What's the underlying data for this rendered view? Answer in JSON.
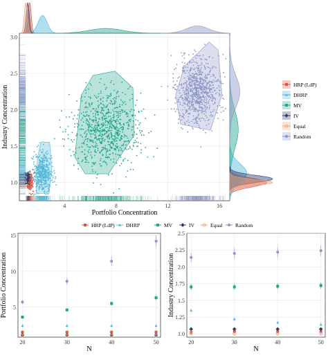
{
  "colors": {
    "HRP (LdP)": "#e0553f",
    "DHRP": "#4fb7d9",
    "MV": "#22a48b",
    "IV": "#2d3f6b",
    "Equal": "#f0a07a",
    "Random": "#8d97c7"
  },
  "chart_data": [
    {
      "type": "scatter",
      "title": "",
      "xlabel": "Portfolio Concentration",
      "ylabel": "Industry Concentration",
      "xlim": [
        0.5,
        16.8
      ],
      "ylim": [
        0.75,
        3.05
      ],
      "x_ticks": [
        "4",
        "8",
        "12",
        "16"
      ],
      "y_ticks": [
        "1.0",
        "1.5",
        "2.0",
        "2.5",
        "3.0"
      ],
      "grid": true,
      "legend_position": "right",
      "legend": [
        "HRP (LdP)",
        "DHRP",
        "MV",
        "IV",
        "Equal",
        "Random"
      ],
      "marginal_plots": [
        "x-density (top)",
        "y-density (right)",
        "rug (x and y)"
      ],
      "series": [
        {
          "name": "HRP (LdP)",
          "center": [
            1.3,
            1.0
          ],
          "spread": [
            0.12,
            0.06
          ],
          "hull": [
            [
              1.1,
              0.92
            ],
            [
              1.5,
              0.93
            ],
            [
              1.55,
              1.05
            ],
            [
              1.4,
              1.12
            ],
            [
              1.15,
              1.1
            ]
          ]
        },
        {
          "name": "DHRP",
          "center": [
            2.3,
            1.13
          ],
          "spread": [
            0.35,
            0.13
          ],
          "hull": [
            [
              1.8,
              0.85
            ],
            [
              2.8,
              0.85
            ],
            [
              3.0,
              1.2
            ],
            [
              2.85,
              1.55
            ],
            [
              2.2,
              1.56
            ],
            [
              1.9,
              1.35
            ]
          ]
        },
        {
          "name": "MV",
          "center": [
            7.2,
            1.73
          ],
          "spread": [
            1.3,
            0.26
          ],
          "hull": [
            [
              5.6,
              1.12
            ],
            [
              7.4,
              1.12
            ],
            [
              9.4,
              1.65
            ],
            [
              9.3,
              2.3
            ],
            [
              7.9,
              2.53
            ],
            [
              6.2,
              2.47
            ],
            [
              5.3,
              2.2
            ],
            [
              4.8,
              1.35
            ]
          ]
        },
        {
          "name": "IV",
          "center": [
            1.15,
            1.05
          ],
          "spread": [
            0.08,
            0.05
          ],
          "hull": [
            [
              0.95,
              0.98
            ],
            [
              1.3,
              0.98
            ],
            [
              1.35,
              1.12
            ],
            [
              1.0,
              1.12
            ]
          ]
        },
        {
          "name": "Equal",
          "center": [
            1.0,
            1.0
          ],
          "spread": [
            0.0,
            0.0
          ],
          "hull": []
        },
        {
          "name": "Random",
          "center": [
            14.3,
            2.25
          ],
          "spread": [
            0.85,
            0.22
          ],
          "hull": [
            [
              13.0,
              1.8
            ],
            [
              15.3,
              1.72
            ],
            [
              16.2,
              2.2
            ],
            [
              15.9,
              2.82
            ],
            [
              15.2,
              2.93
            ],
            [
              13.3,
              2.6
            ],
            [
              12.6,
              2.2
            ]
          ]
        }
      ]
    },
    {
      "type": "scatter",
      "title": "",
      "xlabel": "N",
      "ylabel": "Portfolio Concentration",
      "categories": [
        20,
        30,
        40,
        50
      ],
      "ylim": [
        0.8,
        15.3
      ],
      "x_ticks": [
        "20",
        "30",
        "40",
        "50"
      ],
      "y_ticks": [
        "5",
        "10",
        "15"
      ],
      "error_bars": true,
      "legend_position": "top",
      "series": [
        {
          "name": "HRP (LdP)",
          "values": [
            1.5,
            1.5,
            1.5,
            1.5
          ]
        },
        {
          "name": "DHRP",
          "values": [
            2.4,
            2.4,
            2.4,
            2.4
          ]
        },
        {
          "name": "MV",
          "values": [
            3.6,
            4.6,
            5.5,
            6.3
          ]
        },
        {
          "name": "IV",
          "values": [
            1.1,
            1.1,
            1.1,
            1.1
          ]
        },
        {
          "name": "Equal",
          "values": [
            1.0,
            1.0,
            1.0,
            1.0
          ]
        },
        {
          "name": "Random",
          "values": [
            5.7,
            8.6,
            11.4,
            14.2
          ]
        }
      ]
    },
    {
      "type": "scatter",
      "title": "",
      "xlabel": "N",
      "ylabel": "Industry Concentration",
      "categories": [
        20,
        30,
        40,
        50
      ],
      "ylim": [
        0.95,
        2.5
      ],
      "x_ticks": [
        "20",
        "30",
        "40",
        "50"
      ],
      "y_ticks": [
        "1.0",
        "1.25",
        "1.5",
        "1.75",
        "2.0",
        "2.25",
        "2.5"
      ],
      "error_bars": true,
      "legend_position": "top",
      "series": [
        {
          "name": "HRP (LdP)",
          "values": [
            1.02,
            1.03,
            1.03,
            1.03
          ]
        },
        {
          "name": "DHRP",
          "values": [
            1.35,
            1.22,
            1.17,
            1.14
          ]
        },
        {
          "name": "MV",
          "values": [
            1.7,
            1.7,
            1.71,
            1.72
          ]
        },
        {
          "name": "IV",
          "values": [
            1.07,
            1.07,
            1.07,
            1.07
          ]
        },
        {
          "name": "Equal",
          "values": [
            1.0,
            1.0,
            1.0,
            1.0
          ]
        },
        {
          "name": "Random",
          "values": [
            2.14,
            2.2,
            2.22,
            2.24
          ]
        }
      ]
    }
  ]
}
